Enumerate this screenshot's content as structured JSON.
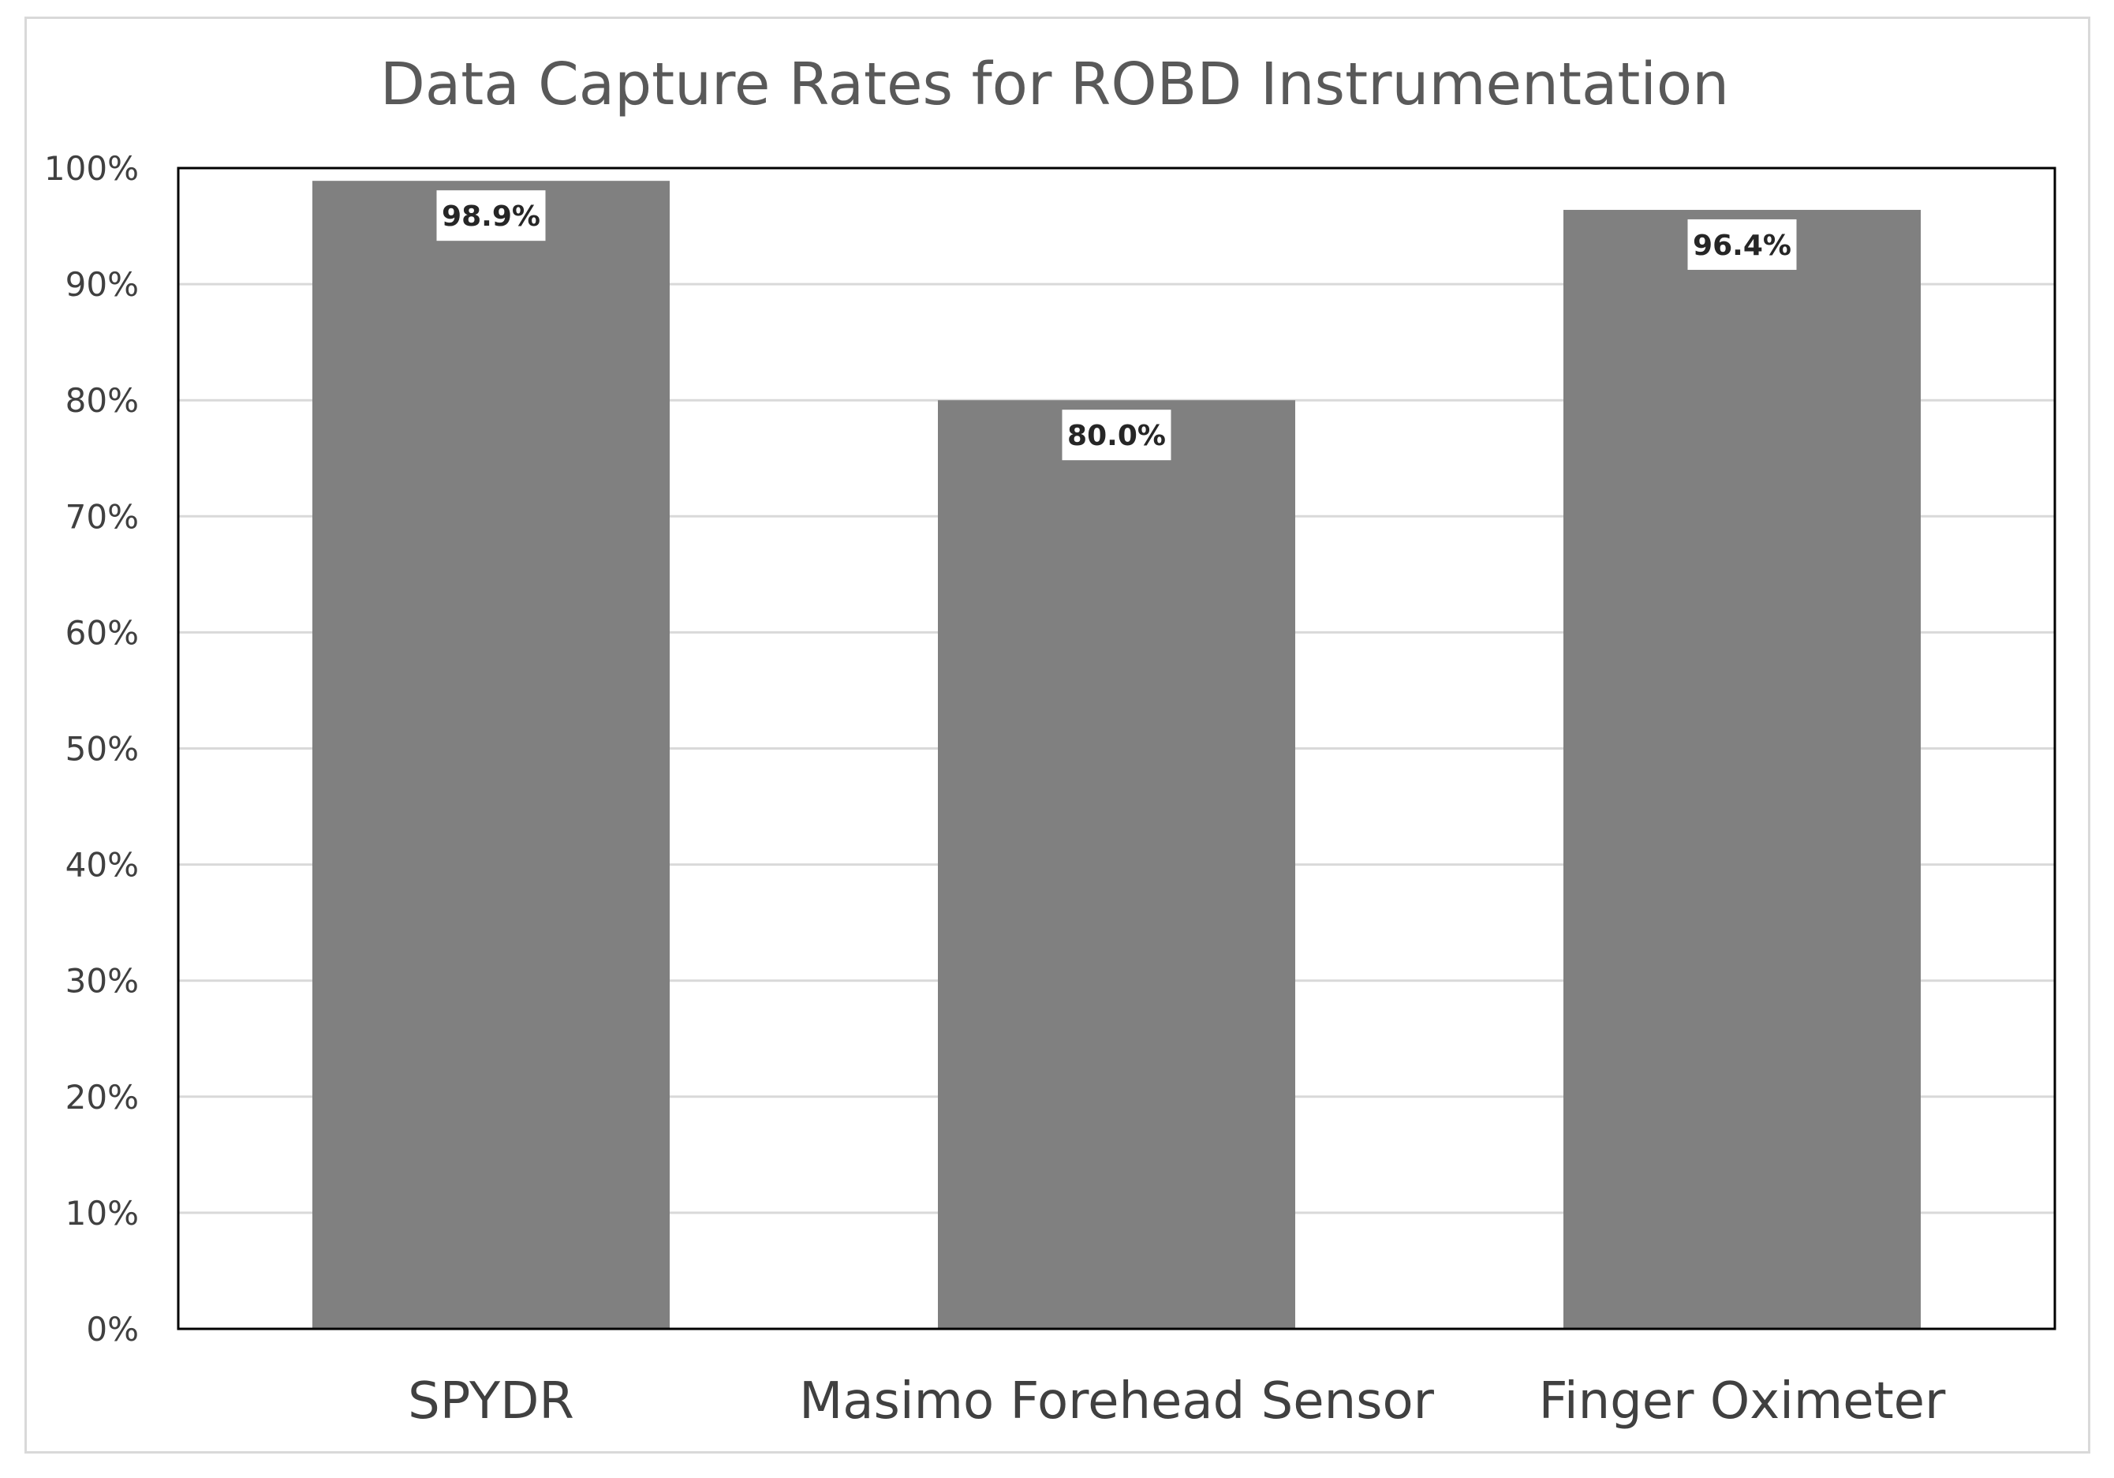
{
  "chart_data": {
    "type": "bar",
    "title": "Data Capture Rates for ROBD Instrumentation",
    "xlabel": "",
    "ylabel": "",
    "categories": [
      "SPYDR",
      "Masimo Forehead Sensor",
      "Finger Oximeter"
    ],
    "values": [
      98.9,
      80.0,
      96.4
    ],
    "data_labels": [
      "98.9%",
      "80.0%",
      "96.4%"
    ],
    "ylim": [
      0,
      100
    ],
    "yticks": [
      0,
      10,
      20,
      30,
      40,
      50,
      60,
      70,
      80,
      90,
      100
    ],
    "ytick_labels": [
      "0%",
      "10%",
      "20%",
      "30%",
      "40%",
      "50%",
      "60%",
      "70%",
      "80%",
      "90%",
      "100%"
    ],
    "grid": true,
    "legend": "none",
    "colors": {
      "bar": "#808080",
      "grid": "#d9d9d9",
      "plot_border": "#000000",
      "label_box": "#ffffff"
    }
  }
}
